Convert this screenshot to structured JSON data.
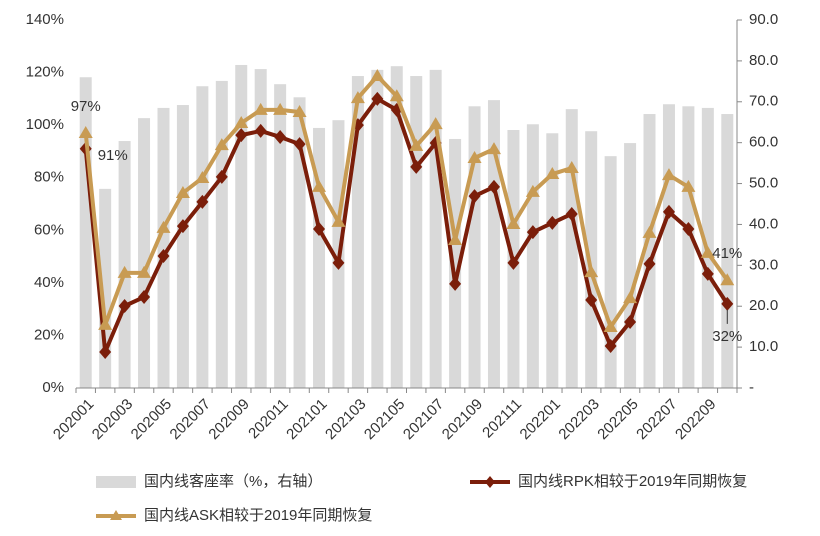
{
  "chart_data": {
    "type": "bar_line",
    "categories": [
      "202001",
      null,
      "202003",
      null,
      "202005",
      null,
      "202007",
      null,
      "202009",
      null,
      "202011",
      null,
      "202101",
      null,
      "202103",
      null,
      "202105",
      null,
      "202107",
      null,
      "202109",
      null,
      "202111",
      null,
      "202201",
      null,
      "202203",
      null,
      "202205",
      null,
      "202207",
      null,
      "202209",
      null
    ],
    "series": [
      {
        "name": "国内线客座率（%，右轴）",
        "type": "bar",
        "axis": "y2",
        "color": "#d9d9d9",
        "values": [
          76.0,
          48.7,
          60.4,
          66.0,
          68.5,
          69.2,
          73.8,
          75.1,
          79.0,
          78.0,
          74.3,
          71.1,
          63.6,
          65.5,
          76.3,
          77.8,
          78.7,
          76.3,
          77.8,
          60.9,
          68.9,
          70.4,
          63.1,
          64.5,
          62.3,
          68.2,
          62.8,
          56.7,
          59.9,
          67.0,
          69.4,
          68.9,
          68.5,
          67.0
        ]
      },
      {
        "name": "国内线RPK相较于2019年同期恢复",
        "type": "line",
        "marker": "diamond",
        "color": "#7b1e0a",
        "values": [
          91,
          13.7,
          31.2,
          34.6,
          50.2,
          61.6,
          70.8,
          80.3,
          96.2,
          97.8,
          95.5,
          92.8,
          60.5,
          47.6,
          100,
          110,
          105.8,
          84.1,
          93.2,
          39.6,
          73.0,
          76.5,
          47.6,
          59.3,
          62.8,
          66.2,
          33.5,
          16.0,
          25.1,
          47.2,
          67.0,
          60.5,
          43.4,
          32
        ],
        "value_labels": [
          "91%",
          null,
          null,
          null,
          null,
          null,
          null,
          null,
          null,
          null,
          null,
          null,
          null,
          null,
          null,
          null,
          null,
          null,
          null,
          null,
          null,
          null,
          null,
          null,
          null,
          null,
          null,
          null,
          null,
          null,
          null,
          null,
          null,
          "32%"
        ]
      },
      {
        "name": "国内线ASK相较于2019年同期恢复",
        "type": "line",
        "marker": "triangle",
        "color": "#c89b53",
        "values": [
          97,
          24.0,
          43.8,
          43.8,
          60.9,
          74.2,
          79.9,
          92.4,
          100.8,
          105.8,
          105.8,
          105,
          76.5,
          63.2,
          110.3,
          118.7,
          111,
          92.1,
          100.4,
          56.3,
          87.5,
          90.9,
          62.4,
          74.6,
          81.4,
          83.7,
          44.1,
          23.2,
          34.2,
          59,
          81,
          76.5,
          51.4,
          41
        ],
        "value_labels": [
          "97%",
          null,
          null,
          null,
          null,
          null,
          null,
          null,
          null,
          null,
          null,
          null,
          null,
          null,
          null,
          null,
          null,
          null,
          null,
          null,
          null,
          null,
          null,
          null,
          null,
          null,
          null,
          null,
          null,
          null,
          null,
          null,
          null,
          "41%"
        ]
      }
    ],
    "ylim": [
      0,
      140
    ],
    "yticks": [
      {
        "value": 0,
        "label": "0%"
      },
      {
        "value": 20,
        "label": "20%"
      },
      {
        "value": 40,
        "label": "40%"
      },
      {
        "value": 60,
        "label": "60%"
      },
      {
        "value": 80,
        "label": "80%"
      },
      {
        "value": 100,
        "label": "100%"
      },
      {
        "value": 120,
        "label": "120%"
      },
      {
        "value": 140,
        "label": "140%"
      }
    ],
    "y2lim": [
      0,
      90
    ],
    "y2ticks": [
      {
        "value": 0,
        "label": "-"
      },
      {
        "value": 10,
        "label": "10.0"
      },
      {
        "value": 20,
        "label": "20.0"
      },
      {
        "value": 30,
        "label": "30.0"
      },
      {
        "value": 40,
        "label": "40.0"
      },
      {
        "value": 50,
        "label": "50.0"
      },
      {
        "value": 60,
        "label": "60.0"
      },
      {
        "value": 70,
        "label": "70.0"
      },
      {
        "value": 80,
        "label": "80.0"
      },
      {
        "value": 90,
        "label": "90.0"
      }
    ],
    "grid": false,
    "legend": "bottom"
  }
}
